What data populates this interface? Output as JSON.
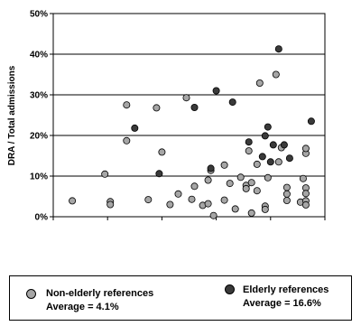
{
  "chart_data": {
    "type": "scatter",
    "ylabel": "DRA / Total admissions",
    "ylim": [
      0,
      50
    ],
    "yticks": [
      "0%",
      "10%",
      "20%",
      "30%",
      "40%",
      "50%"
    ],
    "xlim": [
      0,
      10
    ],
    "grid": "horizontal",
    "series": [
      {
        "name": "Non-elderly references",
        "color": "#a6a6a6",
        "points": [
          [
            0.7,
            3.9
          ],
          [
            1.9,
            10.5
          ],
          [
            2.1,
            3.7
          ],
          [
            2.1,
            3.0
          ],
          [
            2.7,
            27.5
          ],
          [
            2.7,
            18.7
          ],
          [
            3.5,
            4.2
          ],
          [
            3.8,
            26.8
          ],
          [
            4.0,
            15.9
          ],
          [
            4.3,
            3.0
          ],
          [
            4.6,
            5.6
          ],
          [
            4.9,
            29.3
          ],
          [
            5.1,
            4.3
          ],
          [
            5.2,
            7.5
          ],
          [
            5.5,
            2.8
          ],
          [
            5.7,
            9.0
          ],
          [
            5.7,
            3.2
          ],
          [
            5.8,
            11.4
          ],
          [
            5.9,
            0.3
          ],
          [
            6.3,
            12.7
          ],
          [
            6.3,
            4.1
          ],
          [
            6.5,
            8.2
          ],
          [
            6.7,
            1.9
          ],
          [
            6.9,
            9.7
          ],
          [
            7.1,
            7.7
          ],
          [
            7.1,
            6.9
          ],
          [
            7.2,
            16.2
          ],
          [
            7.3,
            8.4
          ],
          [
            7.3,
            0.9
          ],
          [
            7.5,
            6.4
          ],
          [
            7.5,
            12.9
          ],
          [
            7.6,
            32.9
          ],
          [
            7.8,
            2.6
          ],
          [
            7.8,
            1.8
          ],
          [
            7.9,
            9.6
          ],
          [
            8.2,
            35.0
          ],
          [
            8.3,
            13.5
          ],
          [
            8.4,
            17.0
          ],
          [
            8.6,
            7.2
          ],
          [
            8.6,
            5.6
          ],
          [
            8.6,
            4.0
          ],
          [
            9.1,
            3.6
          ],
          [
            9.2,
            9.4
          ],
          [
            9.3,
            7.1
          ],
          [
            9.3,
            5.7
          ],
          [
            9.3,
            3.9
          ],
          [
            9.3,
            2.9
          ],
          [
            9.3,
            15.6
          ],
          [
            9.3,
            16.8
          ]
        ]
      },
      {
        "name": "Elderly references",
        "color": "#3a3a3a",
        "points": [
          [
            3.0,
            21.8
          ],
          [
            3.9,
            10.6
          ],
          [
            5.2,
            26.9
          ],
          [
            5.8,
            11.9
          ],
          [
            6.0,
            31.0
          ],
          [
            6.6,
            28.2
          ],
          [
            7.2,
            18.4
          ],
          [
            7.7,
            14.8
          ],
          [
            7.8,
            19.9
          ],
          [
            7.9,
            22.1
          ],
          [
            8.0,
            13.5
          ],
          [
            8.1,
            17.7
          ],
          [
            8.3,
            41.3
          ],
          [
            8.5,
            17.7
          ],
          [
            8.7,
            14.4
          ],
          [
            9.5,
            23.5
          ]
        ]
      }
    ]
  },
  "legend": {
    "items": [
      {
        "name": "Non-elderly references",
        "average": "Average = 4.1%",
        "color": "#a6a6a6"
      },
      {
        "name": "Elderly references",
        "average": "Average = 16.6%",
        "color": "#3a3a3a"
      }
    ]
  }
}
